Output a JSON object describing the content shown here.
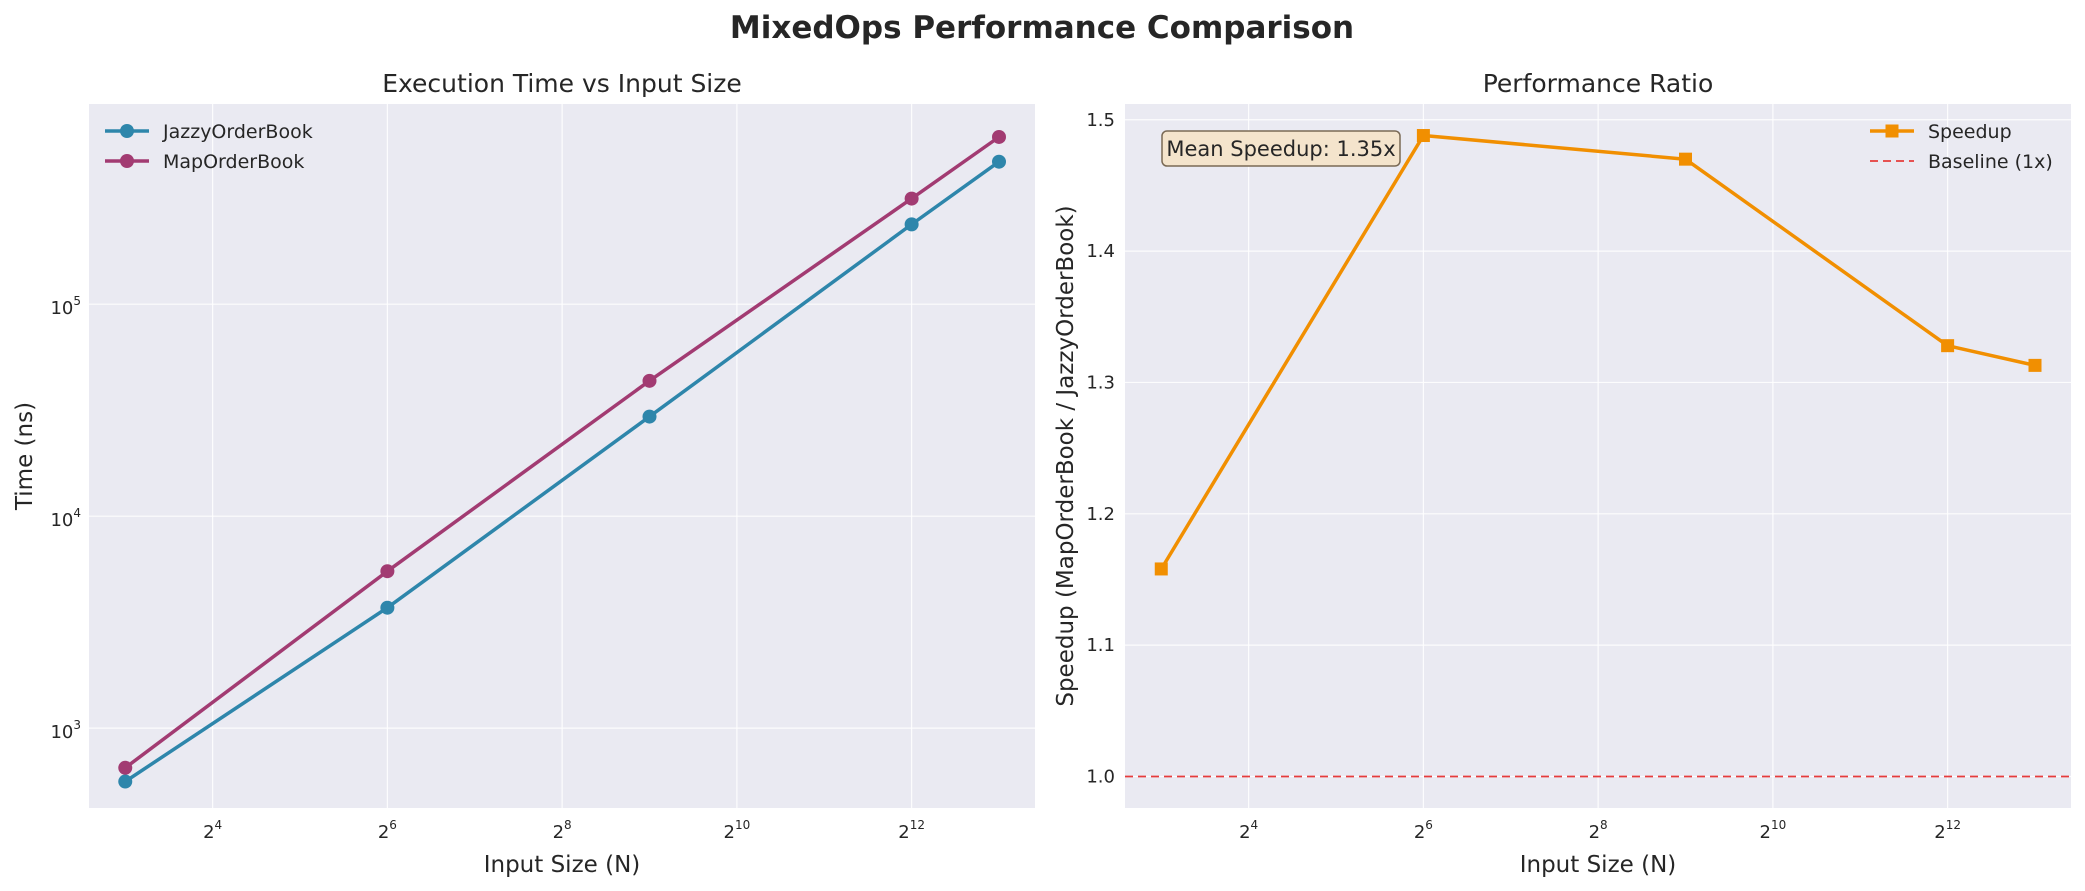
{
  "figure_title": "MixedOps Performance Comparison",
  "colors": {
    "jazzy": "#2e86ab",
    "map": "#a23b72",
    "speedup": "#f18f01",
    "baseline": "#e63c3c",
    "plot_bg": "#eaeaf2",
    "annotation_bg": "#f4e4cc"
  },
  "chart_data": [
    {
      "type": "line",
      "title": "Execution Time vs Input Size",
      "xlabel": "Input Size (N)",
      "ylabel": "Time (ns)",
      "xscale": "log2",
      "yscale": "log10",
      "x": [
        8,
        64,
        512,
        4096,
        8192
      ],
      "xlim": [
        6.0,
        10900
      ],
      "ylim": [
        420,
        880000
      ],
      "xticks": [
        {
          "base": "2",
          "exp": "4"
        },
        {
          "base": "2",
          "exp": "6"
        },
        {
          "base": "2",
          "exp": "8"
        },
        {
          "base": "2",
          "exp": "10"
        },
        {
          "base": "2",
          "exp": "12"
        }
      ],
      "yticks": [
        {
          "base": "10",
          "exp": "3"
        },
        {
          "base": "10",
          "exp": "4"
        },
        {
          "base": "10",
          "exp": "5"
        }
      ],
      "grid": true,
      "legend_position": "upper-left",
      "series": [
        {
          "name": "JazzyOrderBook",
          "marker": "circle",
          "values": [
            560,
            3700,
            29500,
            238000,
            470000
          ]
        },
        {
          "name": "MapOrderBook",
          "marker": "circle",
          "values": [
            650,
            5500,
            43500,
            315000,
            615000
          ]
        }
      ]
    },
    {
      "type": "line",
      "title": "Performance Ratio",
      "xlabel": "Input Size (N)",
      "ylabel": "Speedup (MapOrderBook / JazzyOrderBook)",
      "xscale": "log2",
      "yscale": "linear",
      "x": [
        8,
        64,
        512,
        4096,
        8192
      ],
      "xlim": [
        6.0,
        10900
      ],
      "ylim": [
        0.976,
        1.512
      ],
      "xticks": [
        {
          "base": "2",
          "exp": "4"
        },
        {
          "base": "2",
          "exp": "6"
        },
        {
          "base": "2",
          "exp": "8"
        },
        {
          "base": "2",
          "exp": "10"
        },
        {
          "base": "2",
          "exp": "12"
        }
      ],
      "yticks": [
        "1.0",
        "1.1",
        "1.2",
        "1.3",
        "1.4",
        "1.5"
      ],
      "grid": true,
      "legend_position": "upper-right",
      "series": [
        {
          "name": "Speedup",
          "marker": "square",
          "values": [
            1.158,
            1.488,
            1.47,
            1.328,
            1.313
          ]
        }
      ],
      "reference_line": {
        "name": "Baseline (1x)",
        "y": 1.0,
        "style": "dashed"
      },
      "annotation": "Mean Speedup: 1.35x"
    }
  ]
}
